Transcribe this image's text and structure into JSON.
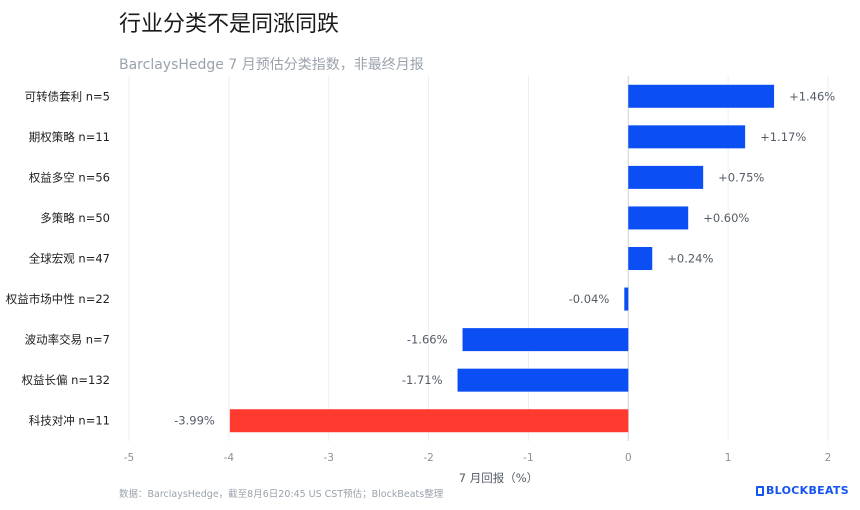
{
  "title": "行业分类不是同涨同跌",
  "subtitle": "BarclaysHedge 7 月预估分类指数，非最终月报",
  "footer": {
    "source": "数据：BarclaysHedge，截至8月6日20:45 US CST预估；BlockBeats整理",
    "logo": "BLOCKBEATS"
  },
  "chart_data": {
    "type": "bar",
    "orientation": "horizontal",
    "categories": [
      "可转债套利  n=5",
      "期权策略  n=11",
      "权益多空  n=56",
      "多策略  n=50",
      "全球宏观  n=47",
      "权益市场中性  n=22",
      "波动率交易  n=7",
      "权益长偏  n=132",
      "科技对冲  n=11"
    ],
    "values": [
      1.46,
      1.17,
      0.75,
      0.6,
      0.24,
      -0.04,
      -1.66,
      -1.71,
      -3.99
    ],
    "value_labels": [
      "+1.46%",
      "+1.17%",
      "+0.75%",
      "+0.60%",
      "+0.24%",
      "-0.04%",
      "-1.66%",
      "-1.71%",
      "-3.99%"
    ],
    "bar_colors": [
      "#0b4ff4",
      "#0b4ff4",
      "#0b4ff4",
      "#0b4ff4",
      "#0b4ff4",
      "#0b4ff4",
      "#0b4ff4",
      "#0b4ff4",
      "#ff3b30"
    ],
    "xlim": [
      -5,
      2
    ],
    "xticks": [
      "-5",
      "-4",
      "-3",
      "-2",
      "-1",
      "0",
      "1",
      "2"
    ],
    "xlabel": "7 月回报（%）",
    "grid": "vertical"
  }
}
